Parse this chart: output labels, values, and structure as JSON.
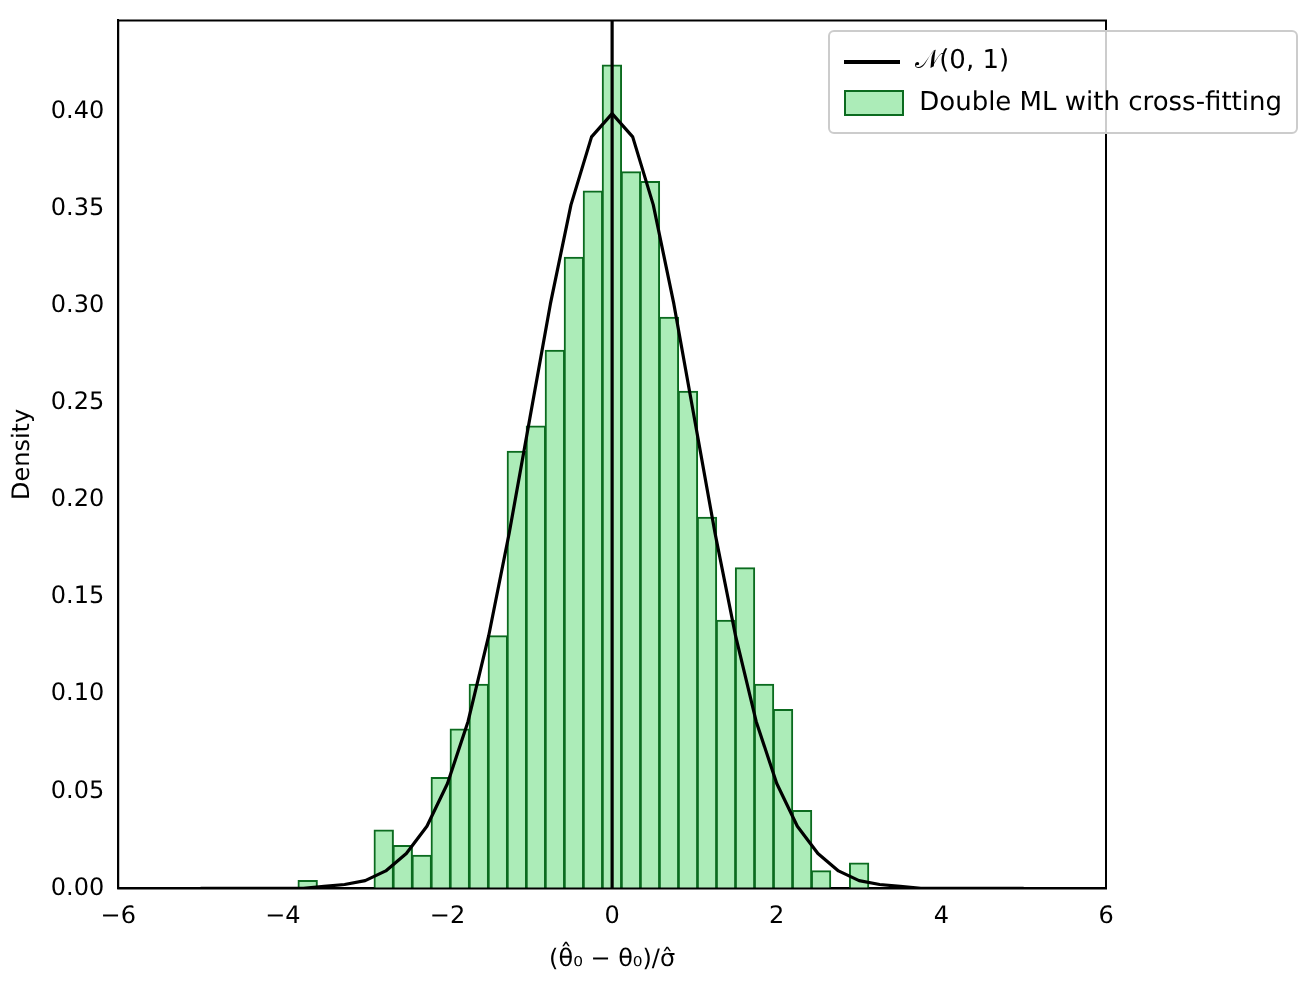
{
  "chart_data": {
    "type": "histogram",
    "xlabel": "(θ̂₀ − θ₀)/σ̂",
    "ylabel": "Density",
    "bins": [
      -3.814,
      -3.583,
      -3.352,
      -3.121,
      -2.89,
      -2.659,
      -2.428,
      -2.197,
      -1.966,
      -1.735,
      -1.504,
      -1.273,
      -1.042,
      -0.811,
      -0.58,
      -0.349,
      -0.118,
      0.113,
      0.344,
      0.575,
      0.806,
      1.037,
      1.268,
      1.499,
      1.73,
      1.961,
      2.192,
      2.423,
      2.654,
      2.885,
      3.116
    ],
    "series": [
      {
        "name": "𝒩(0, 1)",
        "type": "line",
        "color": "#000000",
        "x": [
          -5,
          -4.5,
          -4,
          -3.75,
          -3.5,
          -3.25,
          -3,
          -2.75,
          -2.5,
          -2.25,
          -2,
          -1.75,
          -1.5,
          -1.25,
          -1,
          -0.75,
          -0.5,
          -0.25,
          0,
          0.25,
          0.5,
          0.75,
          1,
          1.25,
          1.5,
          1.75,
          2,
          2.25,
          2.5,
          2.75,
          3,
          3.25,
          3.5,
          3.75,
          4,
          4.5,
          5
        ],
        "values": [
          0,
          0,
          0,
          0,
          0.001,
          0.002,
          0.004,
          0.009,
          0.018,
          0.032,
          0.054,
          0.086,
          0.13,
          0.183,
          0.242,
          0.301,
          0.352,
          0.387,
          0.399,
          0.387,
          0.352,
          0.301,
          0.242,
          0.183,
          0.13,
          0.086,
          0.054,
          0.032,
          0.018,
          0.009,
          0.004,
          0.002,
          0.001,
          0,
          0,
          0,
          0
        ]
      },
      {
        "name": "Double ML with cross-fitting",
        "color": "#acecb8",
        "values": [
          0.004,
          0,
          0,
          0,
          0.03,
          0.022,
          0.017,
          0.057,
          0.082,
          0.105,
          0.13,
          0.225,
          0.238,
          0.277,
          0.325,
          0.359,
          0.424,
          0.369,
          0.364,
          0.294,
          0.256,
          0.191,
          0.138,
          0.165,
          0.105,
          0.092,
          0.04,
          0.009,
          0,
          0.013
        ]
      }
    ],
    "ref_lines": [
      {
        "axis": "x",
        "value": 0,
        "color": "#000000"
      }
    ],
    "xlim": [
      -6,
      6
    ],
    "xticks": [
      {
        "value": -6,
        "label": "−6"
      },
      {
        "value": -4,
        "label": "−4"
      },
      {
        "value": -2,
        "label": "−2"
      },
      0,
      2,
      4,
      6
    ],
    "ylim": [
      0,
      0.447
    ],
    "yticks": [
      {
        "value": 0,
        "label": "0.00"
      },
      0.05,
      {
        "value": 0.1,
        "label": "0.10"
      },
      0.15,
      {
        "value": 0.2,
        "label": "0.20"
      },
      0.25,
      {
        "value": 0.3,
        "label": "0.30"
      },
      0.35,
      {
        "value": 0.4,
        "label": "0.40"
      }
    ],
    "grid": false,
    "legend": "top right"
  }
}
